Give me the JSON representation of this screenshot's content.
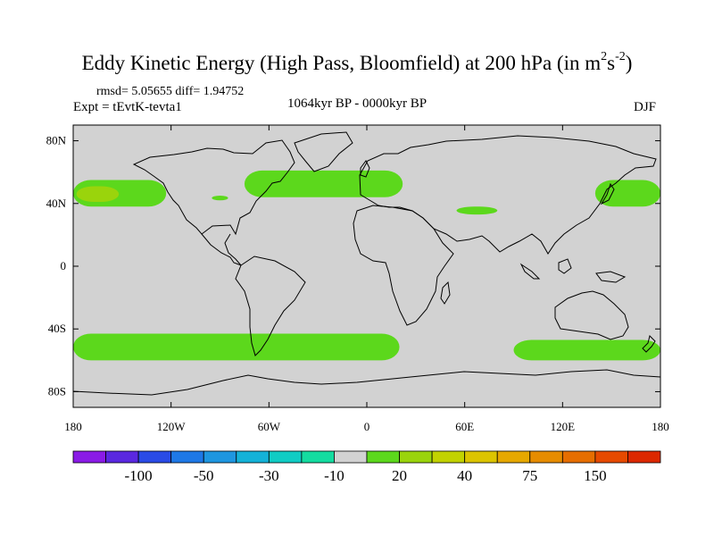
{
  "title": {
    "main": "Eddy Kinetic Energy (High Pass, Bloomfield) at 200 hPa (in m",
    "sup1": "2",
    "mid": "s",
    "sup2": "-2",
    "close": ")"
  },
  "stats": "rmsd= 5.05655 diff= 1.94752",
  "expt": "Expt = tEvtK-tevta1",
  "period": "1064kyr BP - 0000kyr BP",
  "season": "DJF",
  "map": {
    "projection": "cylindrical equidistant",
    "lon_range": [
      -180,
      180
    ],
    "lat_range": [
      -90,
      90
    ],
    "background_color": "#d2d2d2",
    "land_outline_color": "#000000",
    "lat_ticks": [
      {
        "lat": 80,
        "label": "80N"
      },
      {
        "lat": 40,
        "label": "40N"
      },
      {
        "lat": 0,
        "label": "0"
      },
      {
        "lat": -40,
        "label": "40S"
      },
      {
        "lat": -80,
        "label": "80S"
      }
    ],
    "lon_ticks": [
      {
        "lon": -180,
        "label": "180"
      },
      {
        "lon": -120,
        "label": "120W"
      },
      {
        "lon": -60,
        "label": "60W"
      },
      {
        "lon": 0,
        "label": "0"
      },
      {
        "lon": 60,
        "label": "60E"
      },
      {
        "lon": 120,
        "label": "120E"
      },
      {
        "lon": 180,
        "label": "180"
      }
    ],
    "positive_regions": [
      {
        "name": "north-pacific-east",
        "color": "#5cd81c",
        "lon": [
          -180,
          -123
        ],
        "lat": [
          38,
          55
        ]
      },
      {
        "name": "north-pacific-core",
        "color": "#9ad40c",
        "lon": [
          -178,
          -152
        ],
        "lat": [
          41,
          51
        ]
      },
      {
        "name": "north-atlantic",
        "color": "#5cd81c",
        "lon": [
          -75,
          22
        ],
        "lat": [
          44,
          61
        ]
      },
      {
        "name": "great-lakes-patch",
        "color": "#5cd81c",
        "lon": [
          -95,
          -85
        ],
        "lat": [
          42,
          45
        ]
      },
      {
        "name": "eurasia-patch",
        "color": "#5cd81c",
        "lon": [
          55,
          80
        ],
        "lat": [
          33,
          38
        ]
      },
      {
        "name": "north-pacific-west",
        "color": "#5cd81c",
        "lon": [
          140,
          180
        ],
        "lat": [
          38,
          55
        ]
      },
      {
        "name": "southern-ocean-pacific",
        "color": "#5cd81c",
        "lon": [
          -180,
          20
        ],
        "lat": [
          -60,
          -43
        ]
      },
      {
        "name": "southern-ocean-indian",
        "color": "#5cd81c",
        "lon": [
          90,
          180
        ],
        "lat": [
          -60,
          -47
        ]
      }
    ]
  },
  "colorbar": {
    "colors": [
      "#8a1be6",
      "#5a28e0",
      "#2a4be6",
      "#1e78e6",
      "#1e96e0",
      "#14b2d8",
      "#10ccc4",
      "#14dca0",
      "#d2d2d2",
      "#5cd81c",
      "#9ad40c",
      "#c2d200",
      "#dcc400",
      "#e6a800",
      "#e68c00",
      "#e66e00",
      "#e64a00",
      "#dc2800"
    ],
    "labels": [
      {
        "index": 2,
        "text": "-100"
      },
      {
        "index": 4,
        "text": "-50"
      },
      {
        "index": 6,
        "text": "-30"
      },
      {
        "index": 8,
        "text": "-10"
      },
      {
        "index": 10,
        "text": "20"
      },
      {
        "index": 12,
        "text": "40"
      },
      {
        "index": 14,
        "text": "75"
      },
      {
        "index": 16,
        "text": "150"
      }
    ]
  }
}
